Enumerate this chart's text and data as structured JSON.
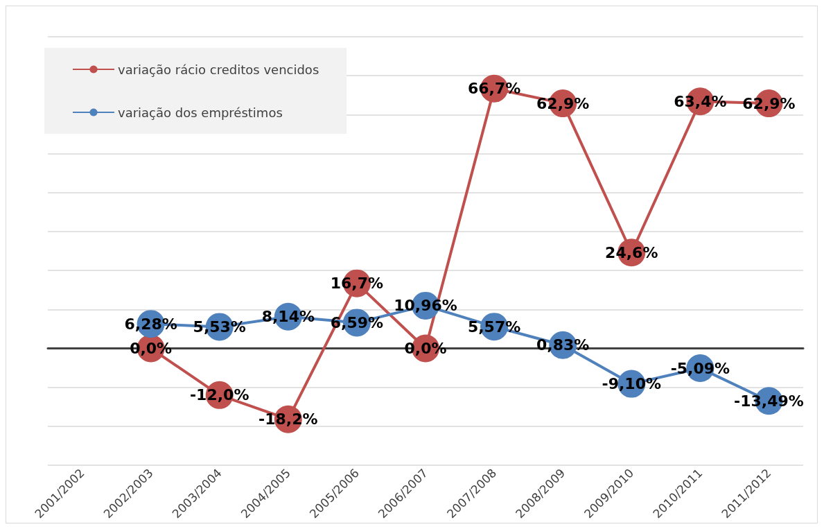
{
  "chart_data": {
    "type": "line",
    "categories": [
      "2001/2002",
      "2002/2003",
      "2003/2004",
      "2004/2005",
      "2005/2006",
      "2006/2007",
      "2007/2008",
      "2008/2009",
      "2009/2010",
      "2010/2011",
      "2011/2012"
    ],
    "series": [
      {
        "name": "variação rácio creditos vencidos",
        "color": "#c0504d",
        "values": [
          null,
          0.0,
          -12.0,
          -18.2,
          16.7,
          0.0,
          66.7,
          62.9,
          24.6,
          63.4,
          62.9
        ],
        "value_labels": [
          null,
          "0,0%",
          "-12,0%",
          "-18,2%",
          "16,7%",
          "0,0%",
          "66,7%",
          "62,9%",
          "24,6%",
          "63,4%",
          "62,9%"
        ]
      },
      {
        "name": "variação dos empréstimos",
        "color": "#4f81bd",
        "values": [
          null,
          6.28,
          5.53,
          8.14,
          6.59,
          10.96,
          5.57,
          0.83,
          -9.1,
          -5.09,
          -13.49
        ],
        "value_labels": [
          null,
          "6,28%",
          "5,53%",
          "8,14%",
          "6,59%",
          "10,96%",
          "5,57%",
          "0,83%",
          "-9,10%",
          "-5,09%",
          "-13,49%"
        ]
      }
    ],
    "ylim": [
      -30,
      80
    ],
    "yticks": [
      {
        "value": -30,
        "label": null
      },
      {
        "value": -20,
        "label": null
      },
      {
        "value": -10,
        "label": null
      },
      {
        "value": 0,
        "label": null
      },
      {
        "value": 10,
        "label": null
      },
      {
        "value": 20,
        "label": null
      },
      {
        "value": 30,
        "label": null
      },
      {
        "value": 40,
        "label": null
      },
      {
        "value": 50,
        "label": null
      },
      {
        "value": 60,
        "label": null
      },
      {
        "value": 70,
        "label": null
      },
      {
        "value": 80,
        "label": null
      }
    ],
    "tick_labels": "x",
    "grid": "y",
    "legend": "top left",
    "marker": "circle",
    "line_style": "solid"
  }
}
